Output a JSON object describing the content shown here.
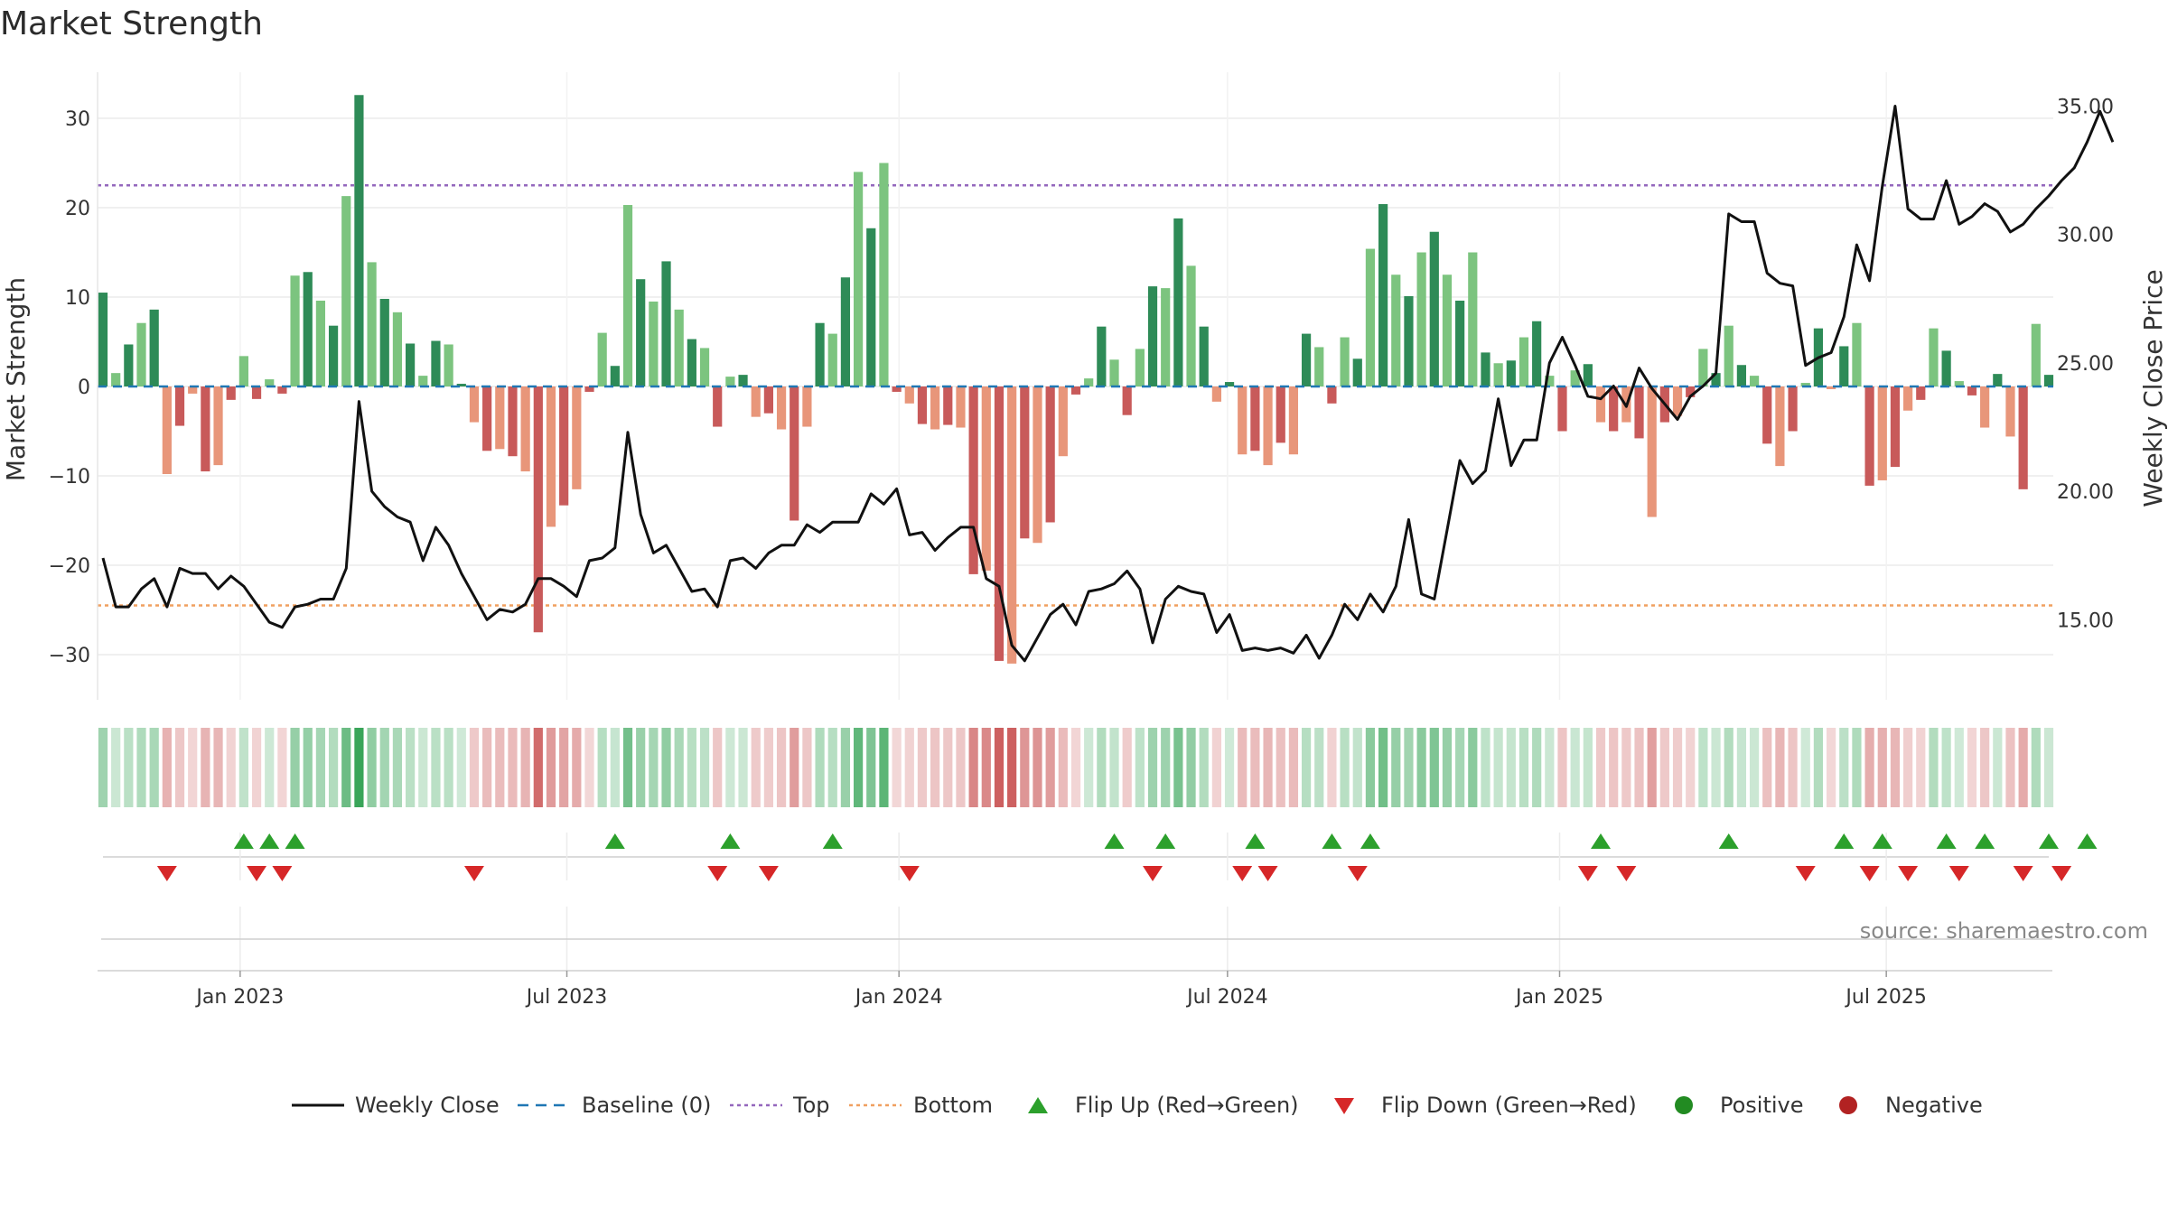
{
  "title": "Market Strength",
  "source": "source: sharemaestro.com",
  "colors": {
    "strong_green": "#2e8b57",
    "light_green": "#7cc47f",
    "strong_red": "#c85a5a",
    "light_red": "#e8967a",
    "close": "#111111",
    "baseline": "#1f77b4",
    "top": "#9467bd",
    "bottom": "#f0a060",
    "flip_up": "#2ca02c",
    "flip_down": "#d62728",
    "positive": "#228b22",
    "negative": "#b22222"
  },
  "chart_data": {
    "type": "bar",
    "title": "Market Strength",
    "ylabel_left": "Market Strength",
    "ylabel_right": "Weekly Close Price",
    "ylim_left": [
      -35,
      35
    ],
    "ylim_right": [
      12.5,
      36.7
    ],
    "left_ticks": [
      "30",
      "20",
      "10",
      "0",
      "−10",
      "−20",
      "−30"
    ],
    "left_tick_values": [
      30,
      20,
      10,
      0,
      -10,
      -20,
      -30
    ],
    "right_ticks": [
      "35.00",
      "30.00",
      "25.00",
      "20.00",
      "15.00"
    ],
    "right_tick_values": [
      35,
      30,
      25,
      20,
      15
    ],
    "top_threshold": 22.5,
    "bottom_threshold": -24.5,
    "baseline": 0,
    "x_start": "2022-10-17",
    "x_end": "2025-09-29",
    "x_ticks": [
      "Jan 2023",
      "Jul 2023",
      "Jan 2024",
      "Jul 2024",
      "Jan 2025",
      "Jul 2025"
    ],
    "x_tick_dates": [
      "2023-01-01",
      "2023-07-01",
      "2024-01-01",
      "2024-07-01",
      "2025-01-01",
      "2025-07-01"
    ],
    "strength": [
      10.5,
      1.5,
      4.7,
      7.1,
      8.6,
      -9.8,
      -4.4,
      -0.8,
      -9.5,
      -8.8,
      -1.5,
      3.4,
      -1.4,
      0.8,
      -0.8,
      12.4,
      12.8,
      9.6,
      6.8,
      21.3,
      32.6,
      13.9,
      9.8,
      8.3,
      4.8,
      1.2,
      5.1,
      4.7,
      0.3,
      -4.0,
      -7.2,
      -7.0,
      -7.8,
      -9.5,
      -27.5,
      -15.7,
      -13.3,
      -11.5,
      -0.6,
      6.0,
      2.3,
      20.3,
      12.0,
      9.5,
      14.0,
      8.6,
      5.3,
      4.3,
      -4.5,
      1.1,
      1.3,
      -3.4,
      -3.0,
      -4.8,
      -15.0,
      -4.5,
      7.1,
      5.9,
      12.2,
      24.0,
      17.7,
      25.0,
      -0.6,
      -1.9,
      -4.2,
      -4.8,
      -4.3,
      -4.6,
      -21.0,
      -20.6,
      -30.7,
      -31.0,
      -17.0,
      -17.5,
      -15.2,
      -7.8,
      -0.9,
      0.9,
      6.7,
      3.0,
      -3.2,
      4.2,
      11.2,
      11.0,
      18.8,
      13.5,
      6.7,
      -1.7,
      0.5,
      -7.6,
      -7.2,
      -8.8,
      -6.3,
      -7.6,
      5.9,
      4.4,
      -1.9,
      5.5,
      3.1,
      15.4,
      20.4,
      12.5,
      10.1,
      15.0,
      17.3,
      12.5,
      9.6,
      15.0,
      3.8,
      2.6,
      2.9,
      5.5,
      7.3,
      1.2,
      -5.0,
      1.8,
      2.5,
      -4.0,
      -5.0,
      -4.0,
      -5.8,
      -14.6,
      -4.0,
      -3.3,
      -1.2,
      4.2,
      1.5,
      6.8,
      2.4,
      1.2,
      -6.4,
      -8.9,
      -5.0,
      0.4,
      6.5,
      -0.3,
      4.5,
      7.1,
      -11.1,
      -10.5,
      -9.0,
      -2.7,
      -1.5,
      6.5,
      4.0,
      0.6,
      -1.0,
      -4.6,
      1.4,
      -5.6,
      -11.5,
      7.0,
      1.3
    ],
    "close": [
      17.4,
      15.5,
      15.5,
      16.2,
      16.6,
      15.5,
      17.0,
      16.8,
      16.8,
      16.2,
      16.7,
      16.3,
      15.6,
      14.9,
      14.7,
      15.5,
      15.6,
      15.8,
      15.8,
      17.0,
      23.5,
      20.0,
      19.4,
      19.0,
      18.8,
      17.3,
      18.6,
      17.9,
      16.8,
      15.9,
      15.0,
      15.4,
      15.3,
      15.6,
      16.6,
      16.6,
      16.3,
      15.9,
      17.3,
      17.4,
      17.8,
      22.3,
      19.1,
      17.6,
      17.9,
      17.0,
      16.1,
      16.2,
      15.5,
      17.3,
      17.4,
      17.0,
      17.6,
      17.9,
      17.9,
      18.7,
      18.4,
      18.8,
      18.8,
      18.8,
      19.9,
      19.5,
      20.1,
      18.3,
      18.4,
      17.7,
      18.2,
      18.6,
      18.6,
      16.6,
      16.3,
      14.0,
      13.4,
      14.3,
      15.2,
      15.6,
      14.8,
      16.1,
      16.2,
      16.4,
      16.9,
      16.2,
      14.1,
      15.8,
      16.3,
      16.1,
      16.0,
      14.5,
      15.2,
      13.8,
      13.9,
      13.8,
      13.9,
      13.7,
      14.4,
      13.5,
      14.4,
      15.6,
      15.0,
      16.0,
      15.3,
      16.3,
      18.9,
      16.0,
      15.8,
      18.5,
      21.2,
      20.3,
      20.8,
      23.6,
      21.0,
      22.0,
      22.0,
      25.0,
      26.0,
      24.9,
      23.7,
      23.6,
      24.1,
      23.3,
      24.8,
      24.0,
      23.4,
      22.8,
      23.7,
      24.1,
      24.6,
      30.8,
      30.5,
      30.5,
      28.5,
      28.1,
      28.0,
      24.9,
      25.2,
      25.4,
      26.8,
      29.6,
      28.2,
      31.9,
      35.0,
      31.0,
      30.6,
      30.6,
      32.1,
      30.4,
      30.7,
      31.2,
      30.9,
      30.1,
      30.4,
      31.0,
      31.5,
      32.1,
      32.6,
      33.6,
      34.8,
      33.6
    ],
    "flip_up_index": [
      11,
      13,
      15,
      40,
      49,
      57,
      79,
      83,
      90,
      96,
      99,
      117,
      127,
      136,
      139,
      144,
      147,
      152,
      155
    ],
    "flip_down_index": [
      5,
      12,
      14,
      29,
      48,
      52,
      63,
      82,
      89,
      91,
      98,
      116,
      119,
      133,
      138,
      141,
      145,
      150,
      153
    ],
    "series": [
      {
        "name": "Weekly Close",
        "kind": "line"
      },
      {
        "name": "Baseline (0)",
        "kind": "dashed"
      },
      {
        "name": "Top",
        "kind": "dotted"
      },
      {
        "name": "Bottom",
        "kind": "dotted"
      },
      {
        "name": "Flip Up (Red→Green)",
        "kind": "marker-up"
      },
      {
        "name": "Flip Down (Green→Red)",
        "kind": "marker-down"
      },
      {
        "name": "Positive",
        "kind": "dot"
      },
      {
        "name": "Negative",
        "kind": "dot"
      }
    ],
    "legend_position": "bottom-center",
    "grid": true
  }
}
